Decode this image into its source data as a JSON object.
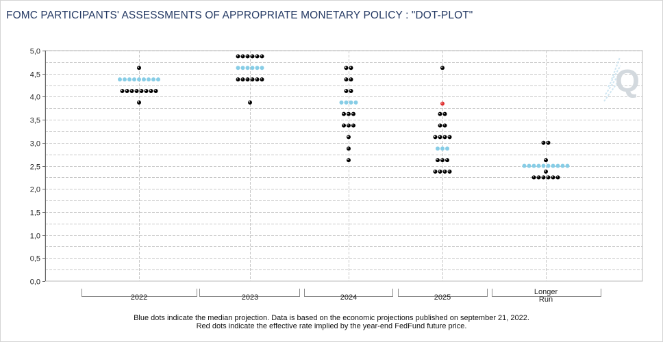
{
  "header": {
    "title": "FOMC PARTICIPANTS' ASSESSMENTS OF APPROPRIATE MONETARY POLICY : \"DOT-PLOT\""
  },
  "footer": {
    "line1": "Blue dots indicate the median projection. Data is based on the economic projections published on september 21, 2022.",
    "line2": "Red dots indicate the effective rate implied by the year-end FedFund future price."
  },
  "logo": {
    "icon": "q-logo-icon",
    "letter": "Q"
  },
  "colors": {
    "black": "#000000",
    "median": "#87cde6",
    "market": "#e03030",
    "grid": "#c8c8c8"
  },
  "chart_data": {
    "type": "scatter",
    "title": "FOMC PARTICIPANTS' ASSESSMENTS OF APPROPRIATE MONETARY POLICY : \"DOT-PLOT\"",
    "xlabel": "",
    "ylabel": "",
    "ylim": [
      0,
      5
    ],
    "y_ticks": [
      "0,0",
      "0,5",
      "1,0",
      "1,5",
      "2,0",
      "2,5",
      "3,0",
      "3,5",
      "4,0",
      "4,5",
      "5,0"
    ],
    "grid": true,
    "categories": [
      {
        "label": "2022",
        "lines": [
          "2022"
        ]
      },
      {
        "label": "2023",
        "lines": [
          "2023"
        ]
      },
      {
        "label": "2024",
        "lines": [
          "2024"
        ]
      },
      {
        "label": "2025",
        "lines": [
          "2025"
        ]
      },
      {
        "label": "Longer Run",
        "lines": [
          "Longer",
          "Run"
        ]
      }
    ],
    "dots": [
      {
        "category": "2022",
        "rates": [
          {
            "y": 4.625,
            "count": 1,
            "type": "participant"
          },
          {
            "y": 4.375,
            "count": 9,
            "type": "median"
          },
          {
            "y": 4.125,
            "count": 8,
            "type": "participant"
          },
          {
            "y": 3.875,
            "count": 1,
            "type": "participant"
          }
        ]
      },
      {
        "category": "2023",
        "rates": [
          {
            "y": 4.875,
            "count": 6,
            "type": "participant"
          },
          {
            "y": 4.625,
            "count": 6,
            "type": "median"
          },
          {
            "y": 4.375,
            "count": 6,
            "type": "participant"
          },
          {
            "y": 3.875,
            "count": 1,
            "type": "participant"
          }
        ]
      },
      {
        "category": "2024",
        "rates": [
          {
            "y": 4.625,
            "count": 2,
            "type": "participant"
          },
          {
            "y": 4.375,
            "count": 2,
            "type": "participant"
          },
          {
            "y": 4.125,
            "count": 2,
            "type": "participant"
          },
          {
            "y": 3.875,
            "count": 4,
            "type": "median"
          },
          {
            "y": 3.625,
            "count": 3,
            "type": "participant"
          },
          {
            "y": 3.375,
            "count": 3,
            "type": "participant"
          },
          {
            "y": 3.125,
            "count": 1,
            "type": "participant"
          },
          {
            "y": 2.875,
            "count": 1,
            "type": "participant"
          },
          {
            "y": 2.625,
            "count": 1,
            "type": "participant"
          }
        ]
      },
      {
        "category": "2025",
        "rates": [
          {
            "y": 4.625,
            "count": 1,
            "type": "participant"
          },
          {
            "y": 3.85,
            "count": 1,
            "type": "market"
          },
          {
            "y": 3.625,
            "count": 2,
            "type": "participant"
          },
          {
            "y": 3.375,
            "count": 2,
            "type": "participant"
          },
          {
            "y": 3.125,
            "count": 4,
            "type": "participant"
          },
          {
            "y": 2.875,
            "count": 3,
            "type": "median"
          },
          {
            "y": 2.625,
            "count": 3,
            "type": "participant"
          },
          {
            "y": 2.375,
            "count": 4,
            "type": "participant"
          }
        ]
      },
      {
        "category": "Longer Run",
        "rates": [
          {
            "y": 3.0,
            "count": 2,
            "type": "participant"
          },
          {
            "y": 2.625,
            "count": 1,
            "type": "participant"
          },
          {
            "y": 2.5,
            "count": 10,
            "type": "median"
          },
          {
            "y": 2.375,
            "count": 1,
            "type": "participant"
          },
          {
            "y": 2.25,
            "count": 6,
            "type": "participant"
          }
        ]
      }
    ]
  }
}
